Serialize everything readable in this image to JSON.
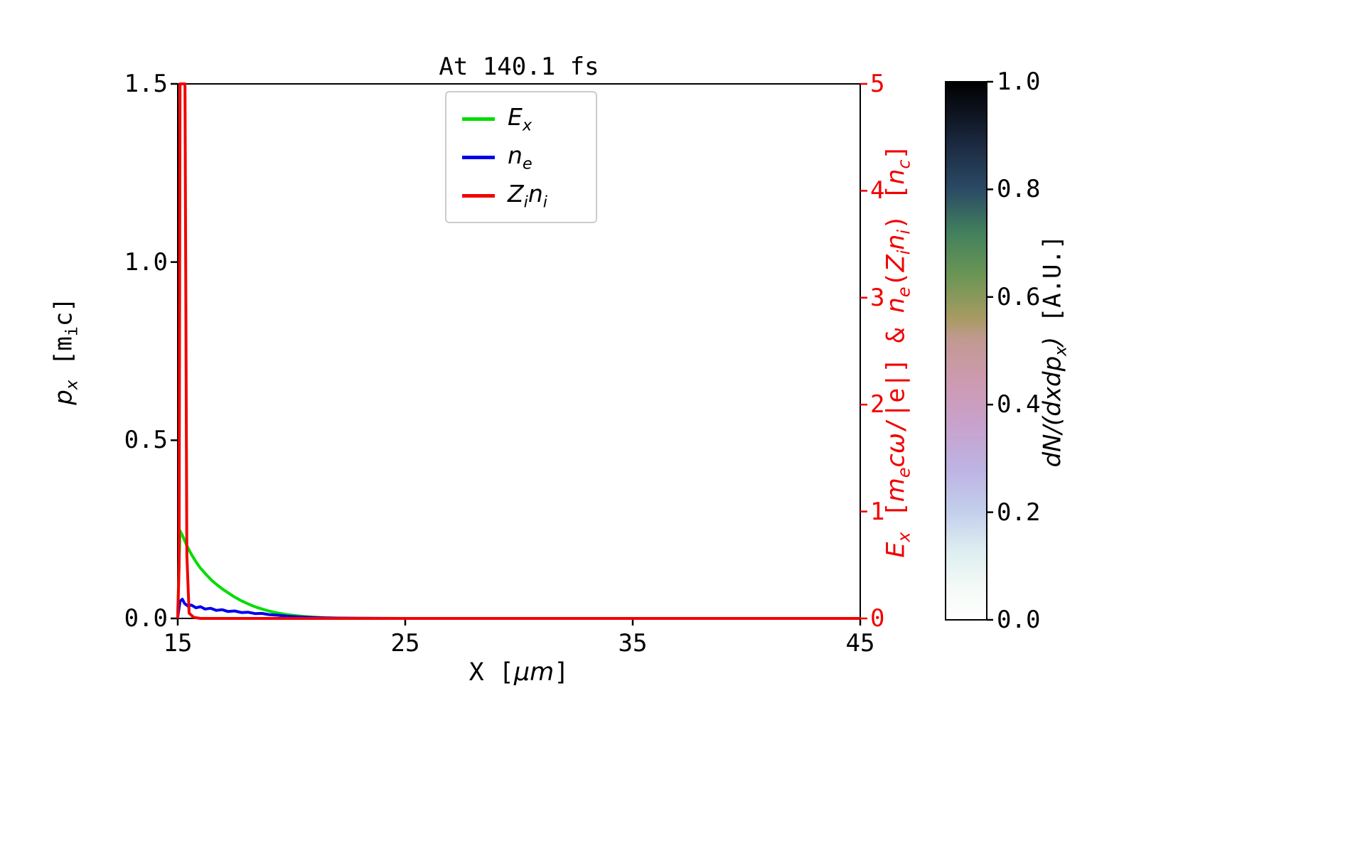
{
  "figure": {
    "background": "#ffffff"
  },
  "chart_data": {
    "type": "line",
    "title": "At 140.1 fs",
    "x_axis": {
      "label": "X [μm]",
      "label_rich": [
        {
          "t": "X ["
        },
        {
          "t": "μm",
          "i": 1
        },
        {
          "t": "]"
        }
      ],
      "range": [
        15,
        45
      ],
      "ticks": [
        15,
        25,
        35,
        45
      ],
      "tick_labels": [
        "15",
        "25",
        "35",
        "45"
      ]
    },
    "y_left": {
      "label": "p_x [m_i c]",
      "label_rich": [
        {
          "t": "p",
          "i": 1
        },
        {
          "sub": "x",
          "i": 1
        },
        {
          "t": " [m"
        },
        {
          "sub": "i"
        },
        {
          "t": "c]"
        }
      ],
      "range": [
        0,
        1.5
      ],
      "ticks": [
        0,
        0.5,
        1.0,
        1.5
      ],
      "tick_labels": [
        "0.0",
        "0.5",
        "1.0",
        "1.5"
      ],
      "color": "#000000"
    },
    "y_right": {
      "label": "E_x [m_e cω/|e|] & n_e(Z_i n_i) [n_c]",
      "label_rich": [
        {
          "t": "E",
          "i": 1
        },
        {
          "sub": "x",
          "i": 1
        },
        {
          "t": " ["
        },
        {
          "t": "m",
          "i": 1
        },
        {
          "sub": "e",
          "i": 1
        },
        {
          "t": "cω",
          "i": 1
        },
        {
          "t": "/|e|] & "
        },
        {
          "t": "n",
          "i": 1
        },
        {
          "sub": "e",
          "i": 1
        },
        {
          "t": "("
        },
        {
          "t": "Z",
          "i": 1
        },
        {
          "sub": "i",
          "i": 1
        },
        {
          "t": "n",
          "i": 1
        },
        {
          "sub": "i",
          "i": 1
        },
        {
          "t": ") ["
        },
        {
          "t": "n",
          "i": 1
        },
        {
          "sub": "c",
          "i": 1
        },
        {
          "t": "]"
        }
      ],
      "range": [
        0,
        5
      ],
      "ticks": [
        0,
        1,
        2,
        3,
        4,
        5
      ],
      "tick_labels": [
        "0",
        "1",
        "2",
        "3",
        "4",
        "5"
      ],
      "color": "#f20000"
    },
    "series": [
      {
        "name": "E_x",
        "axis": "right",
        "color": "#00dd00",
        "points": [
          [
            15,
            0.05
          ],
          [
            15.05,
            0.45
          ],
          [
            15.1,
            0.82
          ],
          [
            15.2,
            0.78
          ],
          [
            15.4,
            0.68
          ],
          [
            15.6,
            0.6
          ],
          [
            15.8,
            0.53
          ],
          [
            16,
            0.47
          ],
          [
            16.25,
            0.41
          ],
          [
            16.5,
            0.355
          ],
          [
            16.75,
            0.31
          ],
          [
            17,
            0.27
          ],
          [
            17.25,
            0.235
          ],
          [
            17.5,
            0.2
          ],
          [
            17.75,
            0.17
          ],
          [
            18,
            0.145
          ],
          [
            18.25,
            0.122
          ],
          [
            18.5,
            0.102
          ],
          [
            18.75,
            0.085
          ],
          [
            19,
            0.07
          ],
          [
            19.25,
            0.058
          ],
          [
            19.5,
            0.047
          ],
          [
            19.75,
            0.038
          ],
          [
            20,
            0.031
          ],
          [
            20.25,
            0.025
          ],
          [
            20.5,
            0.019
          ],
          [
            20.75,
            0.015
          ],
          [
            21,
            0.011
          ],
          [
            21.5,
            0.006
          ],
          [
            22,
            0.003
          ],
          [
            22.5,
            0.0015
          ],
          [
            23,
            0.0008
          ],
          [
            24,
            0.0003
          ],
          [
            25,
            0
          ],
          [
            30,
            0
          ],
          [
            35,
            0
          ],
          [
            40,
            0
          ],
          [
            45,
            0
          ]
        ]
      },
      {
        "name": "n_e",
        "axis": "right",
        "color": "#0000ee",
        "points": [
          [
            15,
            0.01
          ],
          [
            15.1,
            0.16
          ],
          [
            15.2,
            0.18
          ],
          [
            15.3,
            0.14
          ],
          [
            15.45,
            0.115
          ],
          [
            15.6,
            0.125
          ],
          [
            15.8,
            0.1
          ],
          [
            16,
            0.11
          ],
          [
            16.2,
            0.088
          ],
          [
            16.45,
            0.095
          ],
          [
            16.7,
            0.075
          ],
          [
            16.95,
            0.082
          ],
          [
            17.2,
            0.065
          ],
          [
            17.5,
            0.07
          ],
          [
            17.8,
            0.055
          ],
          [
            18.1,
            0.058
          ],
          [
            18.4,
            0.045
          ],
          [
            18.7,
            0.047
          ],
          [
            19,
            0.036
          ],
          [
            19.4,
            0.03
          ],
          [
            19.8,
            0.022
          ],
          [
            20.2,
            0.016
          ],
          [
            20.6,
            0.011
          ],
          [
            21,
            0.008
          ],
          [
            21.5,
            0.005
          ],
          [
            22,
            0.003
          ],
          [
            23,
            0.0012
          ],
          [
            24,
            0.0005
          ],
          [
            25,
            0
          ],
          [
            35,
            0
          ],
          [
            45,
            0
          ]
        ]
      },
      {
        "name": "Z_i n_i",
        "axis": "right",
        "color": "#f20000",
        "points": [
          [
            15,
            0
          ],
          [
            15.06,
            0.5
          ],
          [
            15.1,
            5
          ],
          [
            15.32,
            5
          ],
          [
            15.4,
            0.6
          ],
          [
            15.5,
            0.05
          ],
          [
            15.7,
            0.01
          ],
          [
            16,
            0
          ],
          [
            25,
            0
          ],
          [
            35,
            0
          ],
          [
            45,
            0
          ]
        ]
      }
    ],
    "legend": {
      "entries": [
        {
          "label": "E_x",
          "label_rich": [
            {
              "t": "E",
              "i": 1
            },
            {
              "sub": "x",
              "i": 1
            }
          ],
          "series": 0
        },
        {
          "label": "n_e",
          "label_rich": [
            {
              "t": "n",
              "i": 1
            },
            {
              "sub": "e",
              "i": 1
            }
          ],
          "series": 1
        },
        {
          "label": "Z_i n_i",
          "label_rich": [
            {
              "t": "Z",
              "i": 1
            },
            {
              "sub": "i",
              "i": 1
            },
            {
              "t": "n",
              "i": 1
            },
            {
              "sub": "i",
              "i": 1
            }
          ],
          "series": 2
        }
      ]
    },
    "colorbar": {
      "label": "dN/(dxdp_x) [A.U.]",
      "label_rich": [
        {
          "t": "dN/(dxdp",
          "i": 1
        },
        {
          "sub": "x",
          "i": 1
        },
        {
          "t": ")",
          "i": 1
        },
        {
          "t": " [A.U.]"
        }
      ],
      "range": [
        0,
        1
      ],
      "ticks": [
        0,
        0.2,
        0.4,
        0.6,
        0.8,
        1.0
      ],
      "tick_labels": [
        "0.0",
        "0.2",
        "0.4",
        "0.6",
        "0.8",
        "1.0"
      ],
      "stops": [
        [
          0.0,
          "#ffffff"
        ],
        [
          0.06,
          "#f4faf6"
        ],
        [
          0.13,
          "#ddedf0"
        ],
        [
          0.2,
          "#c3cfec"
        ],
        [
          0.28,
          "#bdb3e3"
        ],
        [
          0.36,
          "#c8a2cd"
        ],
        [
          0.44,
          "#cd9ab2"
        ],
        [
          0.52,
          "#c29992"
        ],
        [
          0.56,
          "#a89b63"
        ],
        [
          0.64,
          "#6b9554"
        ],
        [
          0.72,
          "#42805d"
        ],
        [
          0.8,
          "#2b4a66"
        ],
        [
          0.88,
          "#1c2b42"
        ],
        [
          0.94,
          "#0e1420"
        ],
        [
          1.0,
          "#000000"
        ]
      ]
    },
    "heatmap": {
      "visible_nonzero_points": []
    }
  }
}
